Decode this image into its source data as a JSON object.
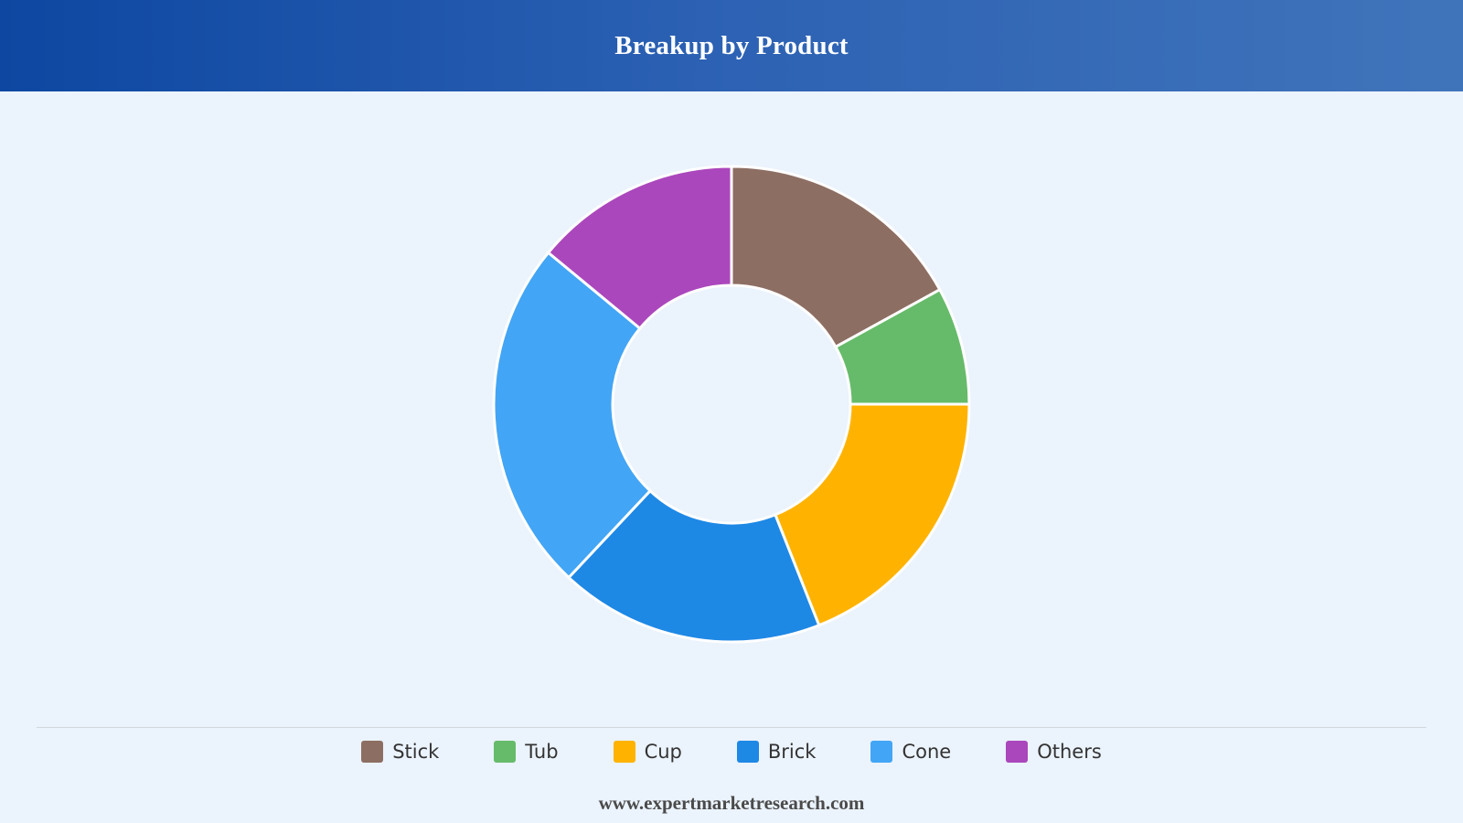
{
  "header": {
    "title": "Breakup by Product"
  },
  "chart_data": {
    "type": "pie",
    "title": "Breakup by Product",
    "donut": true,
    "categories": [
      "Stick",
      "Tub",
      "Cup",
      "Brick",
      "Cone",
      "Others"
    ],
    "values": [
      17,
      8,
      19,
      18,
      24,
      14
    ],
    "unit": "%",
    "colors": [
      "#8d6e63",
      "#66bb6a",
      "#ffb300",
      "#1e88e5",
      "#42a5f5",
      "#ab47bc"
    ],
    "legend_position": "bottom"
  },
  "legend": {
    "items": [
      {
        "label": "Stick",
        "color": "#8d6e63"
      },
      {
        "label": "Tub",
        "color": "#66bb6a"
      },
      {
        "label": "Cup",
        "color": "#ffb300"
      },
      {
        "label": "Brick",
        "color": "#1e88e5"
      },
      {
        "label": "Cone",
        "color": "#42a5f5"
      },
      {
        "label": "Others",
        "color": "#ab47bc"
      }
    ]
  },
  "footer": {
    "source": "www.expertmarketresearch.com"
  }
}
